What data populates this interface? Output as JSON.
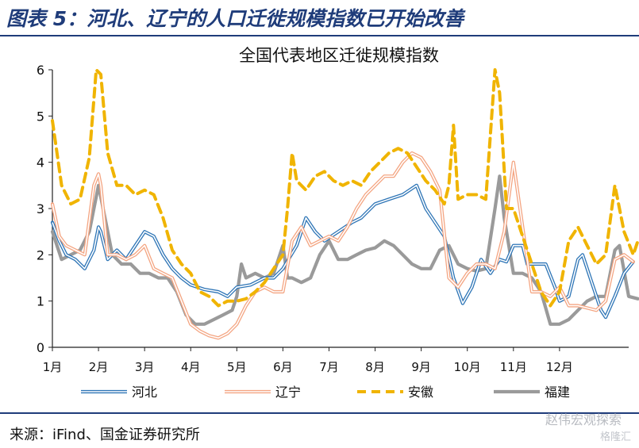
{
  "figure_title": "图表 5：河北、辽宁的人口迁徙规模指数已开始改善",
  "source_note": "来源：iFind、国金证券研究所",
  "watermark": "赵伟宏观探索",
  "watermark2": "格隆汇",
  "colors": {
    "title": "#1f3c7a",
    "hebei": "#2e75b6",
    "liaoning": "#f4a582",
    "anhui": "#f0b400",
    "fujian": "#9a9a9a"
  },
  "chart_data": {
    "type": "line",
    "title": "全国代表地区迁徙规模指数",
    "ylim": [
      0,
      6
    ],
    "yticks": [
      "0",
      "1",
      "2",
      "3",
      "4",
      "5",
      "6"
    ],
    "months": [
      "1月",
      "2月",
      "3月",
      "4月",
      "5月",
      "6月",
      "7月",
      "8月",
      "9月",
      "10月",
      "11月",
      "12月"
    ],
    "xlim": [
      0,
      12.5
    ],
    "grid": false,
    "legend": "bottom",
    "series": [
      {
        "name": "河北",
        "style": "double-blue",
        "points": [
          [
            0,
            2.7
          ],
          [
            0.15,
            2.3
          ],
          [
            0.3,
            2.0
          ],
          [
            0.5,
            1.9
          ],
          [
            0.7,
            1.7
          ],
          [
            0.9,
            2.1
          ],
          [
            1.0,
            2.6
          ],
          [
            1.05,
            2.5
          ],
          [
            1.2,
            1.9
          ],
          [
            1.4,
            2.1
          ],
          [
            1.6,
            1.9
          ],
          [
            1.8,
            2.2
          ],
          [
            2.0,
            2.5
          ],
          [
            2.2,
            2.4
          ],
          [
            2.4,
            2.0
          ],
          [
            2.6,
            1.7
          ],
          [
            2.8,
            1.5
          ],
          [
            3.0,
            1.35
          ],
          [
            3.3,
            1.25
          ],
          [
            3.6,
            1.2
          ],
          [
            3.8,
            1.1
          ],
          [
            4.0,
            1.3
          ],
          [
            4.3,
            1.35
          ],
          [
            4.6,
            1.5
          ],
          [
            4.8,
            1.5
          ],
          [
            5.0,
            1.7
          ],
          [
            5.3,
            2.2
          ],
          [
            5.5,
            2.8
          ],
          [
            5.7,
            2.5
          ],
          [
            5.9,
            2.3
          ],
          [
            6.2,
            2.5
          ],
          [
            6.5,
            2.7
          ],
          [
            6.7,
            2.8
          ],
          [
            7.0,
            3.1
          ],
          [
            7.3,
            3.2
          ],
          [
            7.6,
            3.3
          ],
          [
            7.9,
            3.5
          ],
          [
            8.1,
            3.0
          ],
          [
            8.3,
            2.7
          ],
          [
            8.5,
            2.4
          ],
          [
            8.7,
            1.5
          ],
          [
            8.9,
            0.95
          ],
          [
            9.1,
            1.3
          ],
          [
            9.3,
            1.9
          ],
          [
            9.5,
            1.6
          ],
          [
            9.7,
            1.9
          ],
          [
            9.85,
            1.85
          ],
          [
            10.0,
            2.2
          ],
          [
            10.2,
            2.2
          ],
          [
            10.3,
            1.8
          ],
          [
            10.5,
            1.8
          ],
          [
            10.7,
            1.8
          ],
          [
            10.9,
            1.3
          ],
          [
            11.0,
            1.0
          ],
          [
            11.2,
            1.1
          ],
          [
            11.4,
            1.9
          ],
          [
            11.5,
            2.0
          ],
          [
            11.7,
            1.4
          ],
          [
            11.9,
            0.8
          ],
          [
            12.0,
            0.65
          ],
          [
            12.2,
            1.1
          ],
          [
            12.4,
            1.6
          ],
          [
            12.6,
            1.85
          ]
        ]
      },
      {
        "name": "辽宁",
        "style": "double-orange",
        "points": [
          [
            0,
            3.1
          ],
          [
            0.15,
            2.4
          ],
          [
            0.3,
            2.2
          ],
          [
            0.5,
            2.1
          ],
          [
            0.7,
            2.0
          ],
          [
            0.9,
            3.5
          ],
          [
            1.0,
            3.75
          ],
          [
            1.05,
            3.5
          ],
          [
            1.2,
            2.0
          ],
          [
            1.4,
            2.0
          ],
          [
            1.6,
            1.9
          ],
          [
            1.8,
            2.0
          ],
          [
            2.0,
            2.2
          ],
          [
            2.2,
            1.7
          ],
          [
            2.4,
            1.6
          ],
          [
            2.6,
            1.5
          ],
          [
            2.8,
            1.0
          ],
          [
            3.0,
            0.5
          ],
          [
            3.2,
            0.35
          ],
          [
            3.4,
            0.25
          ],
          [
            3.6,
            0.2
          ],
          [
            3.8,
            0.3
          ],
          [
            4.0,
            0.5
          ],
          [
            4.2,
            0.9
          ],
          [
            4.4,
            1.2
          ],
          [
            4.6,
            1.3
          ],
          [
            4.8,
            1.2
          ],
          [
            5.0,
            1.2
          ],
          [
            5.2,
            2.3
          ],
          [
            5.4,
            2.6
          ],
          [
            5.6,
            2.2
          ],
          [
            5.8,
            2.3
          ],
          [
            6.0,
            2.4
          ],
          [
            6.2,
            2.3
          ],
          [
            6.4,
            2.6
          ],
          [
            6.6,
            3.0
          ],
          [
            6.8,
            3.3
          ],
          [
            7.0,
            3.5
          ],
          [
            7.2,
            3.7
          ],
          [
            7.4,
            3.7
          ],
          [
            7.6,
            4.0
          ],
          [
            7.8,
            4.2
          ],
          [
            8.0,
            4.1
          ],
          [
            8.2,
            3.8
          ],
          [
            8.4,
            3.4
          ],
          [
            8.6,
            1.5
          ],
          [
            8.8,
            1.3
          ],
          [
            9.0,
            1.6
          ],
          [
            9.2,
            1.8
          ],
          [
            9.4,
            1.8
          ],
          [
            9.6,
            1.7
          ],
          [
            9.8,
            2.5
          ],
          [
            10.0,
            4.0
          ],
          [
            10.2,
            2.6
          ],
          [
            10.4,
            1.2
          ],
          [
            10.6,
            1.2
          ],
          [
            10.8,
            1.1
          ],
          [
            11.0,
            1.3
          ],
          [
            11.2,
            0.9
          ],
          [
            11.4,
            0.9
          ],
          [
            11.6,
            0.85
          ],
          [
            11.8,
            0.8
          ],
          [
            12.0,
            1.0
          ],
          [
            12.2,
            1.9
          ],
          [
            12.4,
            2.0
          ],
          [
            12.6,
            1.85
          ]
        ]
      },
      {
        "name": "安徽",
        "style": "dashed-gold",
        "points": [
          [
            0,
            4.9
          ],
          [
            0.2,
            3.5
          ],
          [
            0.4,
            3.1
          ],
          [
            0.6,
            3.2
          ],
          [
            0.8,
            4.1
          ],
          [
            0.95,
            6.0
          ],
          [
            1.05,
            5.9
          ],
          [
            1.2,
            4.2
          ],
          [
            1.4,
            3.5
          ],
          [
            1.6,
            3.5
          ],
          [
            1.8,
            3.3
          ],
          [
            2.0,
            3.4
          ],
          [
            2.2,
            3.3
          ],
          [
            2.4,
            2.8
          ],
          [
            2.6,
            2.1
          ],
          [
            2.8,
            1.8
          ],
          [
            3.0,
            1.6
          ],
          [
            3.2,
            1.2
          ],
          [
            3.4,
            1.1
          ],
          [
            3.6,
            0.9
          ],
          [
            3.8,
            1.0
          ],
          [
            4.0,
            1.0
          ],
          [
            4.2,
            1.05
          ],
          [
            4.4,
            1.2
          ],
          [
            4.6,
            1.4
          ],
          [
            4.8,
            1.7
          ],
          [
            5.0,
            2.0
          ],
          [
            5.1,
            3.0
          ],
          [
            5.2,
            4.2
          ],
          [
            5.3,
            3.6
          ],
          [
            5.5,
            3.4
          ],
          [
            5.7,
            3.7
          ],
          [
            5.9,
            3.8
          ],
          [
            6.1,
            3.6
          ],
          [
            6.3,
            3.5
          ],
          [
            6.5,
            3.6
          ],
          [
            6.7,
            3.5
          ],
          [
            6.9,
            3.8
          ],
          [
            7.1,
            4.0
          ],
          [
            7.3,
            4.2
          ],
          [
            7.5,
            4.3
          ],
          [
            7.7,
            4.2
          ],
          [
            7.9,
            3.9
          ],
          [
            8.1,
            3.6
          ],
          [
            8.3,
            3.4
          ],
          [
            8.5,
            3.1
          ],
          [
            8.6,
            3.5
          ],
          [
            8.7,
            4.8
          ],
          [
            8.8,
            3.2
          ],
          [
            9.0,
            3.3
          ],
          [
            9.2,
            3.3
          ],
          [
            9.4,
            3.2
          ],
          [
            9.6,
            6.0
          ],
          [
            9.7,
            5.5
          ],
          [
            9.85,
            3.0
          ],
          [
            10.0,
            3.0
          ],
          [
            10.2,
            2.4
          ],
          [
            10.4,
            1.8
          ],
          [
            10.6,
            1.2
          ],
          [
            10.8,
            0.9
          ],
          [
            11.0,
            1.2
          ],
          [
            11.2,
            2.3
          ],
          [
            11.4,
            2.6
          ],
          [
            11.6,
            2.2
          ],
          [
            11.8,
            1.8
          ],
          [
            12.0,
            2.0
          ],
          [
            12.2,
            3.5
          ],
          [
            12.4,
            2.5
          ],
          [
            12.6,
            2.0
          ],
          [
            12.7,
            2.3
          ]
        ]
      },
      {
        "name": "福建",
        "style": "solid-gray",
        "points": [
          [
            0,
            2.5
          ],
          [
            0.2,
            1.9
          ],
          [
            0.4,
            2.0
          ],
          [
            0.6,
            2.1
          ],
          [
            0.8,
            2.5
          ],
          [
            1.0,
            3.5
          ],
          [
            1.1,
            3.0
          ],
          [
            1.3,
            2.0
          ],
          [
            1.5,
            1.8
          ],
          [
            1.7,
            1.8
          ],
          [
            1.9,
            1.6
          ],
          [
            2.1,
            1.6
          ],
          [
            2.3,
            1.5
          ],
          [
            2.5,
            1.5
          ],
          [
            2.7,
            1.2
          ],
          [
            2.9,
            0.7
          ],
          [
            3.1,
            0.5
          ],
          [
            3.3,
            0.5
          ],
          [
            3.5,
            0.6
          ],
          [
            3.7,
            0.7
          ],
          [
            3.9,
            0.8
          ],
          [
            4.0,
            1.1
          ],
          [
            4.1,
            1.8
          ],
          [
            4.2,
            1.5
          ],
          [
            4.4,
            1.6
          ],
          [
            4.6,
            1.5
          ],
          [
            4.8,
            1.6
          ],
          [
            5.0,
            2.2
          ],
          [
            5.1,
            1.5
          ],
          [
            5.2,
            1.5
          ],
          [
            5.4,
            1.4
          ],
          [
            5.6,
            1.5
          ],
          [
            5.8,
            2.0
          ],
          [
            6.0,
            2.3
          ],
          [
            6.2,
            1.9
          ],
          [
            6.4,
            1.9
          ],
          [
            6.6,
            2.0
          ],
          [
            6.8,
            2.1
          ],
          [
            7.0,
            2.15
          ],
          [
            7.2,
            2.3
          ],
          [
            7.4,
            2.2
          ],
          [
            7.6,
            2.0
          ],
          [
            7.8,
            1.8
          ],
          [
            8.0,
            1.7
          ],
          [
            8.2,
            1.7
          ],
          [
            8.4,
            2.1
          ],
          [
            8.6,
            2.2
          ],
          [
            8.8,
            1.8
          ],
          [
            9.0,
            1.7
          ],
          [
            9.2,
            1.65
          ],
          [
            9.4,
            1.7
          ],
          [
            9.6,
            3.0
          ],
          [
            9.7,
            3.7
          ],
          [
            9.8,
            2.8
          ],
          [
            10.0,
            1.6
          ],
          [
            10.2,
            1.6
          ],
          [
            10.4,
            1.5
          ],
          [
            10.6,
            1.2
          ],
          [
            10.8,
            0.5
          ],
          [
            11.0,
            0.5
          ],
          [
            11.2,
            0.6
          ],
          [
            11.4,
            0.8
          ],
          [
            11.6,
            1.0
          ],
          [
            11.8,
            1.1
          ],
          [
            12.0,
            1.1
          ],
          [
            12.2,
            2.1
          ],
          [
            12.3,
            2.2
          ],
          [
            12.5,
            1.1
          ],
          [
            12.7,
            1.05
          ]
        ]
      }
    ]
  }
}
